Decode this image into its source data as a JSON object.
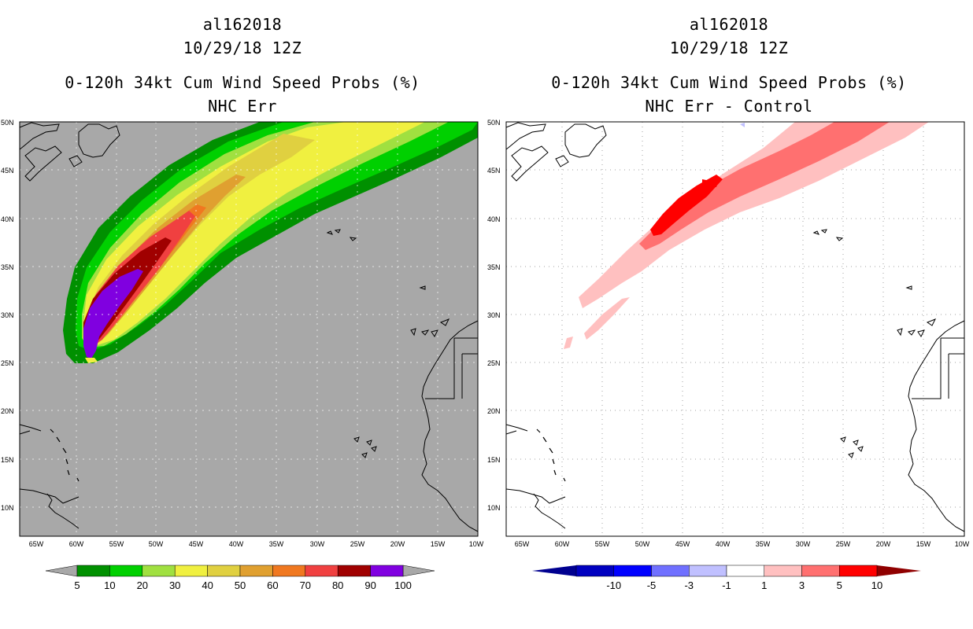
{
  "panels": {
    "left": {
      "storm_id": "al162018",
      "datetime": "10/29/18 12Z",
      "product": "0-120h 34kt Cum Wind Speed Probs (%)",
      "variant": "NHC Err",
      "background_color": "#a8a8a8",
      "lat_labels": [
        "50N",
        "45N",
        "40N",
        "35N",
        "30N",
        "25N",
        "20N",
        "15N",
        "10N"
      ],
      "lon_labels": [
        "65W",
        "60W",
        "55W",
        "50W",
        "45W",
        "40W",
        "35W",
        "30W",
        "25W",
        "20W",
        "15W",
        "10W"
      ],
      "colorbar": {
        "colors": [
          "#009000",
          "#00d000",
          "#a0e040",
          "#f0f040",
          "#e0d040",
          "#e0a030",
          "#f07820",
          "#f04040",
          "#a00000",
          "#8000e0"
        ],
        "labels": [
          "5",
          "10",
          "20",
          "30",
          "40",
          "50",
          "60",
          "70",
          "80",
          "90",
          "100"
        ],
        "extend_color": "#a8a8a8"
      }
    },
    "right": {
      "storm_id": "al162018",
      "datetime": "10/29/18 12Z",
      "product": "0-120h 34kt Cum Wind Speed Probs (%)",
      "variant": "NHC Err - Control",
      "background_color": "#ffffff",
      "lat_labels": [
        "50N",
        "45N",
        "40N",
        "35N",
        "30N",
        "25N",
        "20N",
        "15N",
        "10N"
      ],
      "lon_labels": [
        "65W",
        "60W",
        "55W",
        "50W",
        "45W",
        "40W",
        "35W",
        "30W",
        "25W",
        "20W",
        "15W",
        "10W"
      ],
      "colorbar": {
        "colors": [
          "#0000c0",
          "#0000ff",
          "#7070ff",
          "#c0c0ff",
          "#ffffff",
          "#ffc0c0",
          "#ff7070",
          "#ff0000"
        ],
        "labels": [
          "-10",
          "-5",
          "-3",
          "-1",
          "1",
          "3",
          "5",
          "10"
        ],
        "extend_low_color": "#000090",
        "extend_high_color": "#900000"
      }
    }
  }
}
